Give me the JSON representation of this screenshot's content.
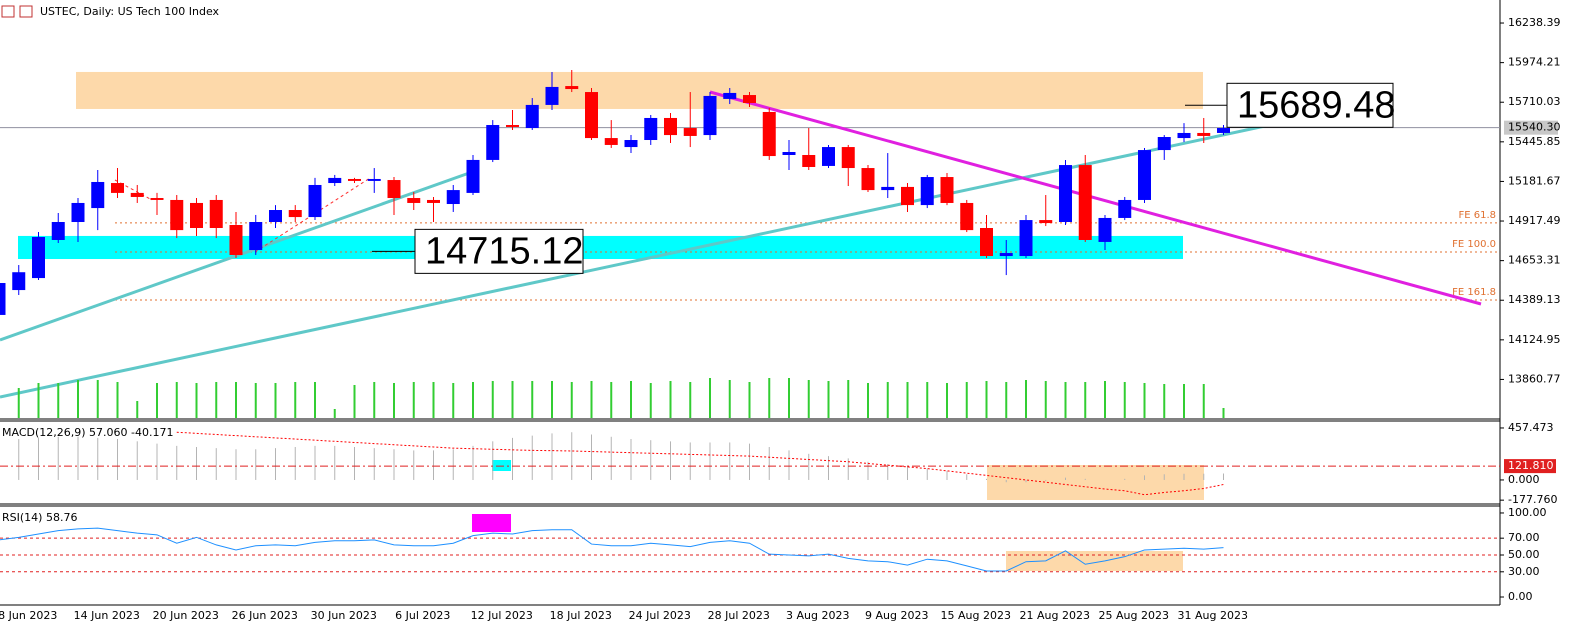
{
  "chart_data": [
    {
      "type": "candlestick",
      "title": "USTEC, Daily:  US Tech 100 Index",
      "categories": [
        null,
        "8 Jun 2023",
        null,
        null,
        null,
        "14 Jun 2023",
        null,
        null,
        null,
        "20 Jun 2023",
        null,
        null,
        null,
        "26 Jun 2023",
        null,
        null,
        null,
        "30 Jun 2023",
        null,
        null,
        null,
        "6 Jul 2023",
        null,
        null,
        null,
        "12 Jul 2023",
        null,
        null,
        null,
        "18 Jul 2023",
        null,
        null,
        null,
        "24 Jul 2023",
        null,
        null,
        null,
        "28 Jul 2023",
        null,
        null,
        null,
        "3 Aug 2023",
        null,
        null,
        null,
        "9 Aug 2023",
        null,
        null,
        null,
        "15 Aug 2023",
        null,
        null,
        null,
        "21 Aug 2023",
        null,
        null,
        null,
        "25 Aug 2023",
        null,
        null,
        null,
        "31 Aug 2023",
        null
      ],
      "open": [
        14291,
        14457,
        14537,
        14791,
        14911,
        15004,
        15171,
        15105,
        15071,
        15058,
        15038,
        15058,
        14891,
        14724,
        14911,
        14991,
        14944,
        15171,
        15198,
        15185,
        15191,
        15071,
        15058,
        15031,
        15105,
        15325,
        15558,
        15538,
        15692,
        15818,
        15778,
        15471,
        15411,
        15458,
        15605,
        15538,
        15491,
        15732,
        15758,
        15645,
        15358,
        15358,
        15285,
        15411,
        15271,
        15124,
        15145,
        15024,
        15211,
        15038,
        14871,
        14684,
        14684,
        14924,
        14911,
        15291,
        14778,
        14938,
        15058,
        15391,
        15471,
        15505,
        15505
      ],
      "high": [
        14524,
        14624,
        14844,
        14971,
        15071,
        15258,
        15271,
        15158,
        15105,
        15091,
        15071,
        15091,
        14978,
        14958,
        15024,
        15024,
        15205,
        15225,
        15205,
        15271,
        15211,
        15111,
        15078,
        15158,
        15358,
        15591,
        15658,
        15738,
        15912,
        15925,
        15805,
        15591,
        15491,
        15625,
        15638,
        15778,
        15778,
        15805,
        15778,
        15672,
        15458,
        15538,
        15425,
        15425,
        15291,
        15371,
        15171,
        15225,
        15238,
        15058,
        14958,
        14791,
        14958,
        15091,
        15325,
        15358,
        14958,
        15078,
        15405,
        15491,
        15571,
        15605,
        15558
      ],
      "low": [
        14271,
        14424,
        14524,
        14771,
        14778,
        14857,
        15071,
        15038,
        14958,
        14804,
        14818,
        14804,
        14671,
        14691,
        14871,
        14911,
        14924,
        15151,
        15171,
        15105,
        14958,
        14991,
        14911,
        14978,
        15091,
        15311,
        15525,
        15525,
        15658,
        15778,
        15458,
        15405,
        15371,
        15425,
        15438,
        15411,
        15458,
        15698,
        15678,
        15325,
        15258,
        15258,
        15271,
        15151,
        15111,
        15071,
        14978,
        15004,
        15024,
        14844,
        14671,
        14557,
        14671,
        14884,
        14891,
        14778,
        14724,
        14924,
        15038,
        15325,
        15445,
        15438,
        15491
      ],
      "close": [
        14504,
        14576,
        14811,
        14911,
        15038,
        15178,
        15105,
        15078,
        15058,
        14857,
        14871,
        14871,
        14691,
        14911,
        14991,
        14944,
        15158,
        15205,
        15185,
        15198,
        15071,
        15038,
        15038,
        15124,
        15325,
        15558,
        15545,
        15692,
        15812,
        15798,
        15471,
        15425,
        15458,
        15605,
        15491,
        15485,
        15752,
        15772,
        15705,
        15351,
        15378,
        15278,
        15411,
        15271,
        15124,
        15145,
        15024,
        15211,
        15038,
        14857,
        14684,
        14704,
        14924,
        14904,
        15291,
        14791,
        14938,
        15058,
        15391,
        15478,
        15505,
        15485,
        15538
      ],
      "up_color": "#0000ff",
      "down_color": "#ff0000",
      "volume": [
        25,
        30,
        35,
        35,
        38,
        38,
        36,
        17,
        35,
        36,
        35,
        36,
        36,
        35,
        35,
        36,
        36,
        9,
        33,
        36,
        35,
        36,
        36,
        35,
        36,
        37,
        37,
        37,
        37,
        36,
        37,
        36,
        37,
        35,
        37,
        36,
        40,
        38,
        36,
        40,
        40,
        38,
        37,
        38,
        35,
        36,
        36,
        36,
        35,
        36,
        37,
        36,
        38,
        37,
        36,
        36,
        37,
        36,
        35,
        34,
        34,
        34,
        10
      ],
      "volume_color": "#32cd32",
      "volume_lim": [
        0,
        100
      ],
      "ylim": [
        13603.5,
        16392
      ],
      "yticks": [
        16238.39,
        15974.21,
        15710.03,
        15445.85,
        15181.67,
        14917.49,
        14653.31,
        14389.13,
        14124.95,
        13860.77
      ],
      "current_price": {
        "value": 15540.3,
        "label": "15540.30"
      },
      "annotations": [
        {
          "value": 14715.12,
          "label": "14715.12"
        },
        {
          "value": 15689.48,
          "label": "15689.48"
        }
      ],
      "levels": [
        {
          "value": 14905,
          "label": "FE 61.8"
        },
        {
          "value": 14711,
          "label": "FE 100.0"
        },
        {
          "value": 14391,
          "label": "FE 161.8"
        }
      ],
      "zones": [
        {
          "low": 15665,
          "high": 15912,
          "color": "#fdd9aa"
        },
        {
          "low": 14664,
          "high": 14818,
          "color": "#00ffff"
        }
      ]
    },
    {
      "type": "macd",
      "title": "MACD(12,26,9) 57.060 -40.171",
      "histogram": [
        350,
        360,
        370,
        380,
        380,
        370,
        360,
        340,
        320,
        300,
        290,
        280,
        270,
        270,
        280,
        290,
        300,
        300,
        290,
        280,
        270,
        260,
        260,
        270,
        300,
        340,
        370,
        390,
        410,
        420,
        400,
        380,
        360,
        350,
        340,
        330,
        330,
        330,
        320,
        290,
        260,
        230,
        210,
        190,
        160,
        140,
        120,
        100,
        80,
        50,
        10,
        -20,
        -20,
        -10,
        20,
        10,
        0,
        10,
        40,
        50,
        55,
        55,
        57.06
      ],
      "histogram_color": "#b4b4b4",
      "signal": [
        null,
        null,
        null,
        null,
        null,
        null,
        null,
        null,
        null,
        420,
        410,
        400,
        390,
        380,
        370,
        360,
        350,
        340,
        330,
        320,
        310,
        300,
        290,
        280,
        275,
        270,
        265,
        260,
        258,
        255,
        250,
        245,
        240,
        235,
        230,
        225,
        220,
        215,
        210,
        200,
        190,
        180,
        170,
        160,
        145,
        130,
        115,
        100,
        80,
        60,
        40,
        20,
        0,
        -20,
        -40,
        -60,
        -80,
        -95,
        -130,
        -110,
        -95,
        -75,
        -40.171
      ],
      "signal_color": "#ff0000",
      "ylim": [
        -194,
        510
      ],
      "yticks": [
        457.473,
        {
          "value": 0,
          "label": "0.000"
        },
        {
          "value": -177.76,
          "label": "-177.760"
        }
      ],
      "level": {
        "value": 121.81,
        "label": "121.810"
      }
    },
    {
      "type": "line",
      "title": "RSI(14) 58.76",
      "values": [
        68,
        71,
        75,
        79,
        81,
        82,
        79,
        76,
        74,
        64,
        71,
        62,
        56,
        61,
        62,
        61,
        65,
        67,
        67,
        68,
        62,
        61,
        61,
        64,
        73,
        76,
        75,
        79,
        80,
        80,
        63,
        61,
        61,
        64,
        62,
        60,
        65,
        67,
        64,
        51,
        50,
        49,
        51,
        46,
        43,
        42,
        38,
        45,
        43,
        37,
        31,
        31,
        42,
        43,
        55,
        39,
        43,
        48,
        56,
        57,
        58,
        57,
        58.76
      ],
      "color": "#1e90ff",
      "ylim": [
        -9.5,
        107.1
      ],
      "yticks": [
        {
          "value": 100,
          "label": "100.00"
        },
        {
          "value": 70,
          "label": "70.00"
        },
        {
          "value": 50,
          "label": "50.00"
        },
        {
          "value": 30,
          "label": "30.00"
        },
        {
          "value": 0,
          "label": "0.00"
        }
      ],
      "levels": [
        70,
        50,
        30
      ]
    }
  ]
}
